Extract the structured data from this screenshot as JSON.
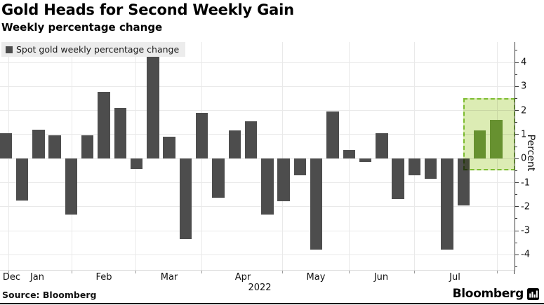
{
  "header": {
    "title": "Gold Heads for Second Weekly Gain",
    "subtitle": "Weekly percentage change"
  },
  "legend": {
    "label": "Spot gold weekly percentage change"
  },
  "footer": {
    "source": "Source: Bloomberg",
    "brand": "Bloomberg"
  },
  "chart_data": {
    "type": "bar",
    "title": "Gold Heads for Second Weekly Gain",
    "subtitle": "Weekly percentage change",
    "series_name": "Spot gold weekly percentage change",
    "ylabel": "Percent",
    "yticks": [
      4,
      3,
      2,
      1,
      0,
      -1,
      -2,
      -3,
      -4
    ],
    "ylim": [
      -4.6,
      4.8
    ],
    "grid": true,
    "legend_position": "top-left",
    "months": [
      "Dec",
      "Jan",
      "Feb",
      "Mar",
      "Apr",
      "May",
      "Jun",
      "Jul"
    ],
    "year": "2022",
    "weekly_pct_change": [
      1.05,
      -1.75,
      1.2,
      0.95,
      -2.35,
      0.95,
      2.75,
      2.1,
      -0.45,
      4.25,
      0.9,
      -3.35,
      1.9,
      -1.65,
      1.15,
      1.55,
      -2.35,
      -1.8,
      -0.7,
      -3.8,
      1.95,
      0.35,
      -0.15,
      1.05,
      -1.7,
      -0.7,
      -0.85,
      -3.8,
      -1.95,
      1.15,
      1.6
    ],
    "highlighted_last_n": 2,
    "highlight_box_value_range": [
      -0.5,
      2.5
    ],
    "colors": {
      "bar": "#4d4d4d",
      "highlight_bar": "#679130",
      "highlight_fill": "#dcecb4",
      "highlight_border": "#7cbc30",
      "gridline": "#e9e9e9",
      "axis": "#3c3c3c"
    }
  }
}
